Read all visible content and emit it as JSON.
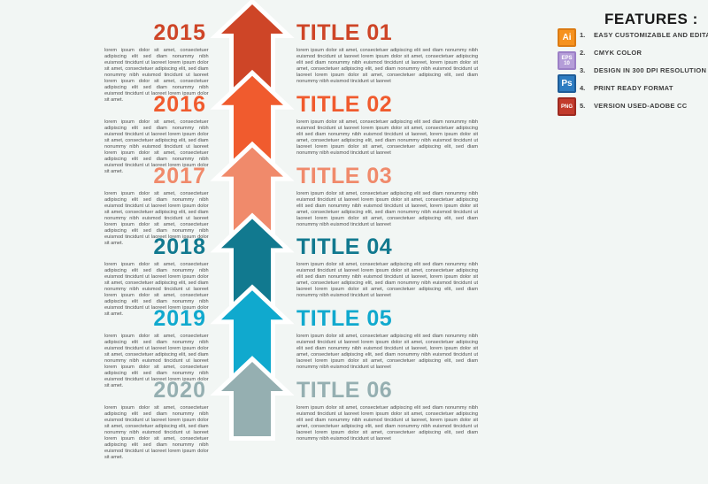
{
  "background_color": "#f2f6f4",
  "timeline": {
    "lorem_left": "lorem ipsum dolor sit amet, consectetuer adipiscing elit sed diam nonummy nibh euismod tincidunt ut laoreet lorem ipsum dolor sit amet, consectetuer adipiscing elit, sed diam nonummy nibh euismod tincidunt ut laoreet lorem ipsum dolor sit amet, consectetuer adipiscing elit sed diam nonummy nibh euismod tincidunt ut laoreet lorem ipsum dolor sit amet.",
    "lorem_right": "lorem ipsum dolor sit amet, consectetuer adipiscing elit sed diam nonummy nibh euismod tincidunt ut laoreet lorem ipsum dolor sit amet, consectetuer adipiscing elit sed diam nonummy nibh euismod tincidunt ut laoreet, lorem ipsum dolor sit amet, consectetuer adipiscing elit, sed diam nonummy nibh euismod tincidunt ut laoreet lorem ipsum dolor sit amet, consectetuer adipiscing elit, sed diam nonummy nibh euismod tincidunt ut laoreet",
    "rows": [
      {
        "year": "2015",
        "title": "TITLE 01",
        "color": "#ce4527"
      },
      {
        "year": "2016",
        "title": "TITLE 02",
        "color": "#f05b2e"
      },
      {
        "year": "2017",
        "title": "TITLE 03",
        "color": "#f08a6b"
      },
      {
        "year": "2018",
        "title": "TITLE 04",
        "color": "#11798f"
      },
      {
        "year": "2019",
        "title": "TITLE 05",
        "color": "#10a9ce"
      },
      {
        "year": "2020",
        "title": "TITLE 06",
        "color": "#95afb1"
      }
    ]
  },
  "features": {
    "heading": "FEATURES :",
    "badges": [
      {
        "name": "adobe-illustrator-icon",
        "lines": [
          "Ai"
        ],
        "bg": "#f6921e",
        "border": "#db7b13"
      },
      {
        "name": "eps-10-icon",
        "lines": [
          "EPS",
          "10"
        ],
        "bg": "#b49dd8",
        "border": "#9b7fc6"
      },
      {
        "name": "photoshop-icon",
        "lines": [
          "Ps"
        ],
        "bg": "#2d7cc1",
        "border": "#1e5c97"
      },
      {
        "name": "png-icon",
        "lines": [
          "PNG"
        ],
        "bg": "#c23b2c",
        "border": "#9d2a20"
      }
    ],
    "items": [
      {
        "num": "1.",
        "label": "EASY CUSTOMIZABLE AND EDITABLE"
      },
      {
        "num": "2.",
        "label": "CMYK COLOR"
      },
      {
        "num": "3.",
        "label": "DESIGN IN 300 DPI RESOLUTION"
      },
      {
        "num": "4.",
        "label": "PRINT READY FORMAT"
      },
      {
        "num": "5.",
        "label": "VERSION USED-ADOBE CC"
      }
    ]
  }
}
